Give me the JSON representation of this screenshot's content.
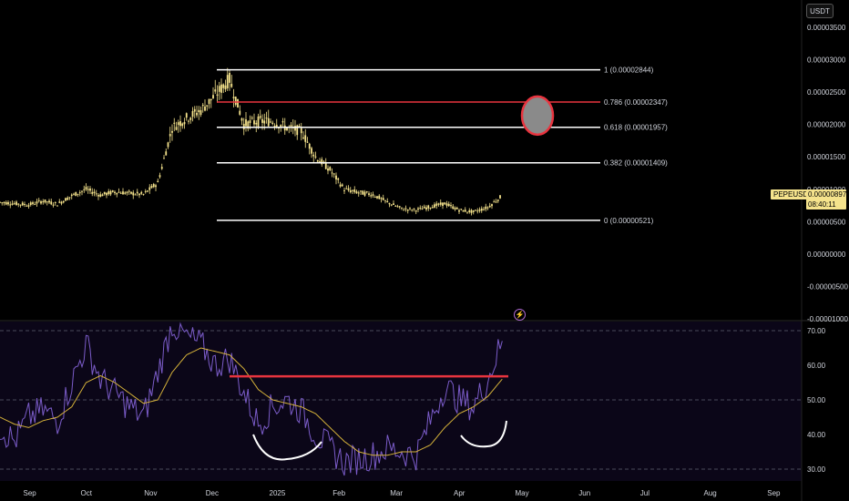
{
  "header": {
    "currency": "USDT"
  },
  "symbol_tag": {
    "symbol": "PEPEUSDT",
    "price": "0.00000897",
    "countdown": "08:40:11"
  },
  "price_axis": [
    "0.00003500",
    "0.00003000",
    "0.00002500",
    "0.00002000",
    "0.00001500",
    "0.00001000",
    "0.00000500",
    "0.00000000",
    "-0.00000500",
    "-0.00001000"
  ],
  "rsi_axis": [
    "70.00",
    "60.00",
    "50.00",
    "40.00",
    "30.00"
  ],
  "months": [
    "Sep",
    "Oct",
    "Nov",
    "Dec",
    "2025",
    "Feb",
    "Mar",
    "Apr",
    "May",
    "Jun",
    "Jul",
    "Aug",
    "Sep"
  ],
  "fib_levels": [
    {
      "label": "1 (0.00002844)",
      "value": 2.844e-05,
      "color": "#ffffff"
    },
    {
      "label": "0.786 (0.00002347)",
      "value": 2.347e-05,
      "color": "#e8343f"
    },
    {
      "label": "0.618 (0.00001957)",
      "value": 1.957e-05,
      "color": "#ffffff"
    },
    {
      "label": "0.382 (0.00001409)",
      "value": 1.409e-05,
      "color": "#ffffff"
    },
    {
      "label": "0 (0.00000521)",
      "value": 5.21e-06,
      "color": "#ffffff"
    }
  ],
  "colors": {
    "candle": "#f5e38c",
    "rsi": "#7b5cc9",
    "rsi_ma": "#d4b13a",
    "resistance": "#e8343f",
    "fib_highlight": "#e8343f"
  },
  "chart_data": {
    "type": "line",
    "panes": [
      {
        "name": "",
        "x": [
          "2024-08-20",
          "2024-08-27",
          "2024-09-03",
          "2024-09-10",
          "2024-09-17",
          "2024-09-24",
          "2024-10-01",
          "2024-10-08",
          "2024-10-15",
          "2024-10-22",
          "2024-10-29",
          "2024-11-05",
          "2024-11-12",
          "2024-11-19",
          "2024-11-26",
          "2024-12-03",
          "2024-12-10",
          "2024-12-17",
          "2024-12-24",
          "2024-12-31",
          "2025-01-07",
          "2025-01-14",
          "2025-01-21",
          "2025-01-28",
          "2025-02-04",
          "2025-02-11",
          "2025-02-18",
          "2025-02-25",
          "2025-03-04",
          "2025-03-11",
          "2025-03-18",
          "2025-03-25",
          "2025-04-01",
          "2025-04-08",
          "2025-04-15",
          "2025-04-22"
        ],
        "values": [
          8e-06,
          7.8e-06,
          7.6e-06,
          8.2e-06,
          7.7e-06,
          9e-06,
          1e-05,
          9.1e-06,
          9.6e-06,
          9.4e-06,
          9.2e-06,
          1.1e-05,
          1.95e-05,
          2.1e-05,
          2.22e-05,
          2.45e-05,
          2.7e-05,
          2e-05,
          2.05e-05,
          2.05e-05,
          1.95e-05,
          1.9e-05,
          1.5e-05,
          1.3e-05,
          1e-05,
          9.5e-06,
          9.2e-06,
          8e-06,
          7e-06,
          6.8e-06,
          7.3e-06,
          7.8e-06,
          6.8e-06,
          6.5e-06,
          7.2e-06,
          9e-06
        ],
        "ylim": [
          -1e-05,
          3.5e-05
        ]
      },
      {
        "name": "",
        "x": [
          "2024-08-20",
          "2024-08-27",
          "2024-09-03",
          "2024-09-10",
          "2024-09-17",
          "2024-09-24",
          "2024-10-01",
          "2024-10-08",
          "2024-10-15",
          "2024-10-22",
          "2024-10-29",
          "2024-11-05",
          "2024-11-12",
          "2024-11-19",
          "2024-11-26",
          "2024-12-03",
          "2024-12-10",
          "2024-12-17",
          "2024-12-24",
          "2024-12-31",
          "2025-01-07",
          "2025-01-14",
          "2025-01-21",
          "2025-01-28",
          "2025-02-04",
          "2025-02-11",
          "2025-02-18",
          "2025-02-25",
          "2025-03-04",
          "2025-03-11",
          "2025-03-18",
          "2025-03-25",
          "2025-04-01",
          "2025-04-08",
          "2025-04-15",
          "2025-04-22"
        ],
        "values": [
          42,
          38,
          45,
          47,
          44,
          55,
          66,
          56,
          52,
          48,
          45,
          58,
          72,
          68,
          66,
          60,
          62,
          52,
          43,
          48,
          50,
          47,
          40,
          36,
          32,
          33,
          34,
          36,
          35,
          34,
          44,
          54,
          50,
          48,
          56,
          67
        ],
        "ma": [
          45,
          43,
          42,
          44,
          45,
          48,
          55,
          57,
          55,
          52,
          49,
          50,
          58,
          63,
          65,
          64,
          63,
          59,
          53,
          50,
          49,
          48,
          46,
          42,
          38,
          35,
          34,
          34,
          35,
          35,
          37,
          42,
          46,
          48,
          51,
          56
        ],
        "ylim": [
          28,
          72
        ]
      }
    ],
    "annotations": [
      {
        "type": "resistance",
        "value": 56.8,
        "from": "2024-12-10",
        "to": "2025-04-25"
      }
    ]
  }
}
